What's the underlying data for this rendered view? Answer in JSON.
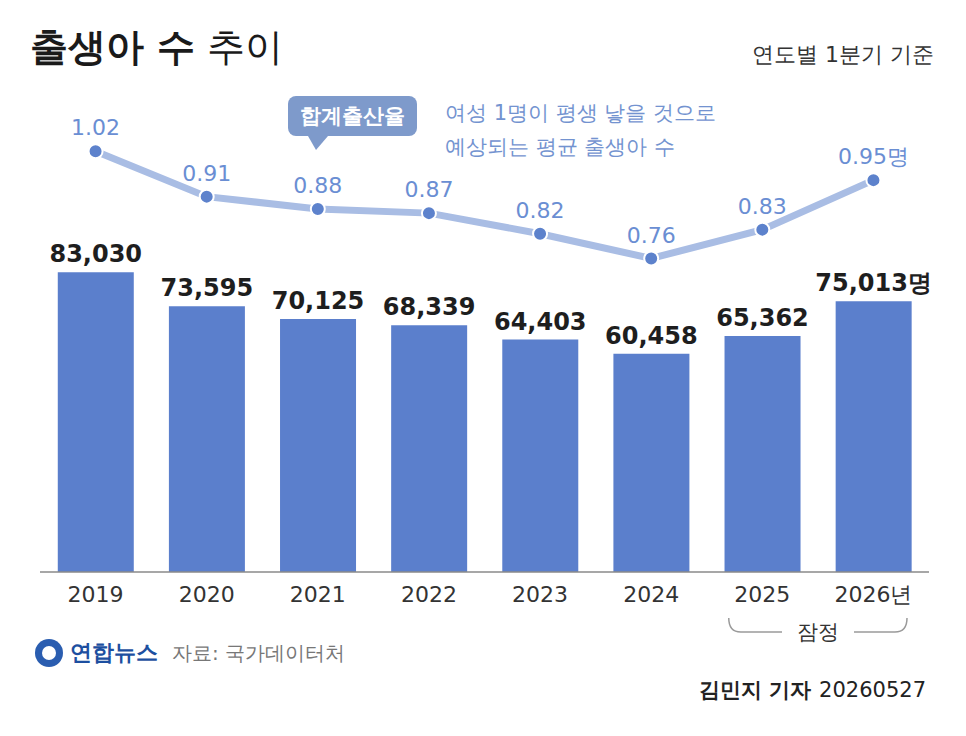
{
  "chart_data": {
    "type": "bar",
    "title": "출생아 수 추이",
    "subtitle": "연도별 1분기 기준",
    "categories": [
      "2019",
      "2020",
      "2021",
      "2022",
      "2023",
      "2024",
      "2025",
      "2026년"
    ],
    "series": [
      {
        "name": "출생아 수",
        "type": "bar",
        "color": "#5b7fcc",
        "values": [
          83030,
          73595,
          70125,
          68339,
          64403,
          60458,
          65362,
          75013
        ],
        "value_labels": [
          "83,030",
          "73,595",
          "70,125",
          "68,339",
          "64,403",
          "60,458",
          "65,362",
          "75,013명"
        ]
      },
      {
        "name": "합계출산율",
        "description": "여성 1명이 평생 낳을 것으로 예상되는 평균 출생아 수",
        "type": "line",
        "axis": "y2",
        "color": "#a9bde4",
        "marker": "circle",
        "values": [
          1.02,
          0.91,
          0.88,
          0.87,
          0.82,
          0.76,
          0.83,
          0.95
        ],
        "value_labels": [
          "1.02",
          "0.91",
          "0.88",
          "0.87",
          "0.82",
          "0.76",
          "0.83",
          "0.95명"
        ]
      }
    ],
    "ylim": [
      0,
      128000
    ],
    "y2lim": [
      0,
      1.12
    ],
    "tick_labels": "x",
    "data_labels": true,
    "grid": false,
    "provisional": {
      "label": "잠정",
      "categories": [
        "2025",
        "2026년"
      ]
    },
    "logo": "연합뉴스",
    "source": "자료: 국가데이터처",
    "byline": "김민지 기자",
    "date": "20260527"
  }
}
